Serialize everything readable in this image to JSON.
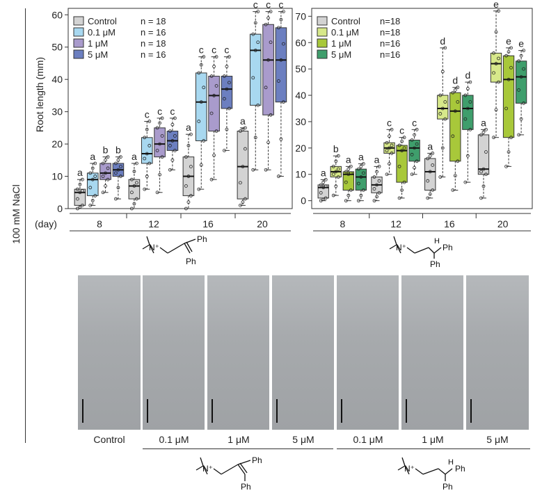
{
  "side_label": "100 mM NaCl",
  "day_label": "(day)",
  "chart_data": [
    {
      "type": "box",
      "ylabel": "Root length (mm)",
      "ylim": [
        0,
        62
      ],
      "yticks": [
        0,
        10,
        20,
        30,
        40,
        50,
        60
      ],
      "categories": [
        "8",
        "12",
        "16",
        "20"
      ],
      "legend": [
        {
          "name": "Control",
          "n": "n = 18",
          "color": "#d3d3d3"
        },
        {
          "name": "0.1 μM",
          "n": "n = 16",
          "color": "#a8d8f0"
        },
        {
          "name": "1 μM",
          "n": "n = 18",
          "color": "#a99bcc"
        },
        {
          "name": "5 μM",
          "n": "n = 16",
          "color": "#6c7fc0"
        }
      ],
      "boxes": [
        [
          {
            "q1": 1,
            "med": 5,
            "q3": 6,
            "lo": 0,
            "hi": 9,
            "letter": "a"
          },
          {
            "q1": 4,
            "med": 9,
            "q3": 11,
            "lo": 1,
            "hi": 14,
            "letter": "a"
          },
          {
            "q1": 9,
            "med": 11,
            "q3": 14,
            "lo": 5,
            "hi": 16,
            "letter": "b"
          },
          {
            "q1": 10,
            "med": 12,
            "q3": 14,
            "lo": 3,
            "hi": 16,
            "letter": "b"
          }
        ],
        [
          {
            "q1": 3,
            "med": 7,
            "q3": 9,
            "lo": 0,
            "hi": 14,
            "letter": "a"
          },
          {
            "q1": 14,
            "med": 17,
            "q3": 22,
            "lo": 6,
            "hi": 27,
            "letter": "c"
          },
          {
            "q1": 16,
            "med": 20,
            "q3": 25,
            "lo": 5,
            "hi": 28,
            "letter": "c"
          },
          {
            "q1": 18,
            "med": 21,
            "q3": 24,
            "lo": 12,
            "hi": 28,
            "letter": "c"
          }
        ],
        [
          {
            "q1": 4,
            "med": 10,
            "q3": 16,
            "lo": 0,
            "hi": 23,
            "letter": "a"
          },
          {
            "q1": 21,
            "med": 33,
            "q3": 42,
            "lo": 6,
            "hi": 47,
            "letter": "c"
          },
          {
            "q1": 24,
            "med": 35,
            "q3": 41,
            "lo": 9,
            "hi": 47,
            "letter": "c"
          },
          {
            "q1": 31,
            "med": 37,
            "q3": 41,
            "lo": 18,
            "hi": 47,
            "letter": "c"
          }
        ],
        [
          {
            "q1": 3,
            "med": 13,
            "q3": 24,
            "lo": 1,
            "hi": 25,
            "letter": "a"
          },
          {
            "q1": 32,
            "med": 49,
            "q3": 54,
            "lo": 12,
            "hi": 61,
            "letter": "c"
          },
          {
            "q1": 29,
            "med": 46,
            "q3": 57,
            "lo": 12,
            "hi": 61,
            "letter": "c"
          },
          {
            "q1": 33,
            "med": 46,
            "q3": 56,
            "lo": 10,
            "hi": 61,
            "letter": "c"
          }
        ]
      ]
    },
    {
      "type": "box",
      "ylabel": "",
      "ylim": [
        -3,
        73
      ],
      "yticks": [
        0,
        10,
        20,
        30,
        40,
        50,
        60,
        70
      ],
      "categories": [
        "8",
        "12",
        "16",
        "20"
      ],
      "legend": [
        {
          "name": "Control",
          "n": "n=18",
          "color": "#d3d3d3"
        },
        {
          "name": "0.1 μM",
          "n": "n=18",
          "color": "#d7e88a"
        },
        {
          "name": "1 μM",
          "n": "n=16",
          "color": "#a8c83a"
        },
        {
          "name": "5 μM",
          "n": "n=16",
          "color": "#3f9e6c"
        }
      ],
      "boxes": [
        [
          {
            "q1": 1,
            "med": 5,
            "q3": 6,
            "lo": 0,
            "hi": 8,
            "letter": "a"
          },
          {
            "q1": 9,
            "med": 11,
            "q3": 13,
            "lo": 2,
            "hi": 17,
            "letter": "b"
          },
          {
            "q1": 4,
            "med": 10,
            "q3": 11,
            "lo": 0,
            "hi": 13,
            "letter": "a"
          },
          {
            "q1": 4,
            "med": 9,
            "q3": 12,
            "lo": 0,
            "hi": 14,
            "letter": "a"
          }
        ],
        [
          {
            "q1": 3,
            "med": 6,
            "q3": 9,
            "lo": 0,
            "hi": 13,
            "letter": "a"
          },
          {
            "q1": 18,
            "med": 20,
            "q3": 22,
            "lo": 10,
            "hi": 27,
            "letter": "c"
          },
          {
            "q1": 7,
            "med": 19,
            "q3": 21,
            "lo": 1,
            "hi": 24,
            "letter": "c"
          },
          {
            "q1": 15,
            "med": 20,
            "q3": 23,
            "lo": 10,
            "hi": 27,
            "letter": "c"
          }
        ],
        [
          {
            "q1": 4,
            "med": 11,
            "q3": 16,
            "lo": 1,
            "hi": 18,
            "letter": "a"
          },
          {
            "q1": 31,
            "med": 35,
            "q3": 40,
            "lo": 9,
            "hi": 58,
            "letter": "d"
          },
          {
            "q1": 15,
            "med": 34,
            "q3": 41,
            "lo": 4,
            "hi": 43,
            "letter": "d"
          },
          {
            "q1": 27,
            "med": 35,
            "q3": 40,
            "lo": 7,
            "hi": 45,
            "letter": "d"
          }
        ],
        [
          {
            "q1": 10,
            "med": 12,
            "q3": 25,
            "lo": 1,
            "hi": 27,
            "letter": "a"
          },
          {
            "q1": 45,
            "med": 52,
            "q3": 56,
            "lo": 24,
            "hi": 72,
            "letter": "e"
          },
          {
            "q1": 24,
            "med": 46,
            "q3": 55,
            "lo": 13,
            "hi": 58,
            "letter": "e"
          },
          {
            "q1": 37,
            "med": 47,
            "q3": 53,
            "lo": 25,
            "hi": 57,
            "letter": "e"
          }
        ]
      ]
    }
  ],
  "structures": {
    "left_ph_top": "Ph",
    "left_ph_bottom": "Ph",
    "right_h": "H",
    "right_ph_top": "Ph",
    "right_ph_bottom": "Ph",
    "n_plus": "N⁺"
  },
  "photos": {
    "labels": [
      "Control",
      "0.1 μM",
      "1 μM",
      "5 μM",
      "0.1 μM",
      "1 μM",
      "5 μM"
    ]
  }
}
